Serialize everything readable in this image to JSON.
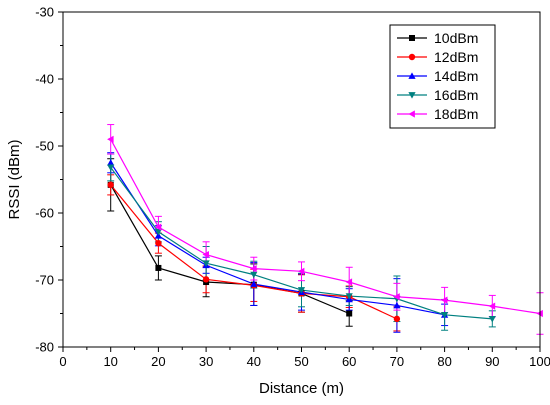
{
  "chart_data": {
    "type": "line",
    "xlabel": "Distance (m)",
    "ylabel": "RSSI (dBm)",
    "xlim": [
      0,
      100
    ],
    "ylim": [
      -80,
      -30
    ],
    "xticks": [
      0,
      10,
      20,
      30,
      40,
      50,
      60,
      70,
      80,
      90,
      100
    ],
    "yticks": [
      -30,
      -40,
      -50,
      -60,
      -70,
      -80
    ],
    "grid": false,
    "legend_position": "top-right",
    "series": [
      {
        "name": "10dBm",
        "color": "#000000",
        "marker": "square",
        "x": [
          10,
          20,
          30,
          40,
          50,
          60
        ],
        "y": [
          -55.8,
          -68.2,
          -70.3,
          -70.7,
          -72.0,
          -75.0
        ],
        "err": [
          3.9,
          1.8,
          2.2,
          3.1,
          2.8,
          1.9
        ]
      },
      {
        "name": "12dBm",
        "color": "#ff0000",
        "marker": "circle",
        "x": [
          10,
          20,
          30,
          40,
          50,
          60,
          70
        ],
        "y": [
          -55.8,
          -64.5,
          -69.9,
          -70.8,
          -72.0,
          -72.5,
          -75.8
        ],
        "err": [
          1.5,
          1.5,
          2.0,
          2.4,
          2.8,
          1.6,
          1.8
        ]
      },
      {
        "name": "14dBm",
        "color": "#0000ff",
        "marker": "triangle-up",
        "x": [
          10,
          20,
          30,
          40,
          50,
          60,
          70,
          80
        ],
        "y": [
          -52.5,
          -63.4,
          -67.8,
          -70.6,
          -71.8,
          -72.9,
          -73.8,
          -75.2
        ],
        "err": [
          1.5,
          1.5,
          1.2,
          3.2,
          2.7,
          1.6,
          4.0,
          1.6
        ]
      },
      {
        "name": "16dBm",
        "color": "#008080",
        "marker": "triangle-down",
        "x": [
          10,
          20,
          30,
          40,
          50,
          60,
          70,
          80,
          90
        ],
        "y": [
          -53.2,
          -62.8,
          -67.5,
          -69.2,
          -71.5,
          -72.4,
          -72.8,
          -75.2,
          -75.8
        ],
        "err": [
          2.0,
          1.5,
          2.5,
          2.0,
          2.5,
          1.4,
          3.4,
          2.3,
          1.2
        ]
      },
      {
        "name": "18dBm",
        "color": "#ff00ff",
        "marker": "triangle-left",
        "x": [
          10,
          20,
          30,
          40,
          50,
          60,
          70,
          80,
          90,
          100
        ],
        "y": [
          -49.0,
          -62.1,
          -66.2,
          -68.3,
          -68.7,
          -70.3,
          -72.5,
          -73.0,
          -73.9,
          -75.0
        ],
        "err": [
          2.2,
          1.6,
          1.9,
          1.7,
          1.4,
          2.2,
          2.0,
          1.9,
          1.6,
          3.1
        ]
      }
    ]
  }
}
